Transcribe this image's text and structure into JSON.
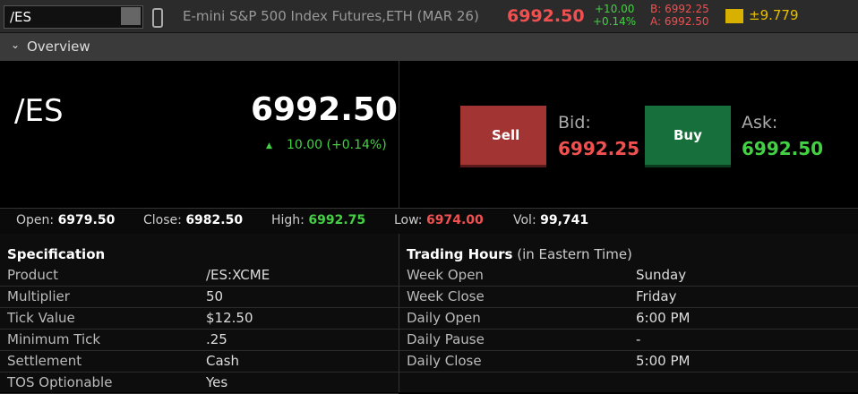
{
  "toolbar": {
    "symbol": "/ES",
    "description": "E-mini S&P 500 Index Futures,ETH (MAR 26)",
    "last": "6992.50",
    "change": "+10.00",
    "change_pct": "+0.14%",
    "bid": "B: 6992.25",
    "ask": "A: 6992.50",
    "mm": "±9.779"
  },
  "section": "Overview",
  "quote": {
    "symbol": "/ES",
    "last": "6992.50",
    "change": "10.00 (+0.14%)",
    "sell": "Sell",
    "bid_label": "Bid:",
    "bid": "6992.25",
    "buy": "Buy",
    "ask_label": "Ask:",
    "ask": "6992.50"
  },
  "stats": [
    {
      "label": "Open:",
      "value": "6979.50"
    },
    {
      "label": "Close:",
      "value": "6982.50"
    },
    {
      "label": "High:",
      "value": "6992.75"
    },
    {
      "label": "Low:",
      "value": "6974.00"
    },
    {
      "label": "Vol:",
      "value": "99,741"
    }
  ],
  "specification": {
    "title": "Specification",
    "rows": [
      [
        "Product",
        "/ES:XCME"
      ],
      [
        "Multiplier",
        "50"
      ],
      [
        "Tick Value",
        "$12.50"
      ],
      [
        "Minimum Tick",
        ".25"
      ],
      [
        "Settlement",
        "Cash"
      ],
      [
        "TOS Optionable",
        "Yes"
      ]
    ]
  },
  "trading_hours": {
    "title": "Trading Hours",
    "note": "(in Eastern Time)",
    "rows": [
      [
        "Week Open",
        "Sunday"
      ],
      [
        "Week Close",
        "Friday"
      ],
      [
        "Daily Open",
        "6:00 PM"
      ],
      [
        "Daily Pause",
        "-"
      ],
      [
        "Daily Close",
        "5:00 PM"
      ]
    ]
  }
}
